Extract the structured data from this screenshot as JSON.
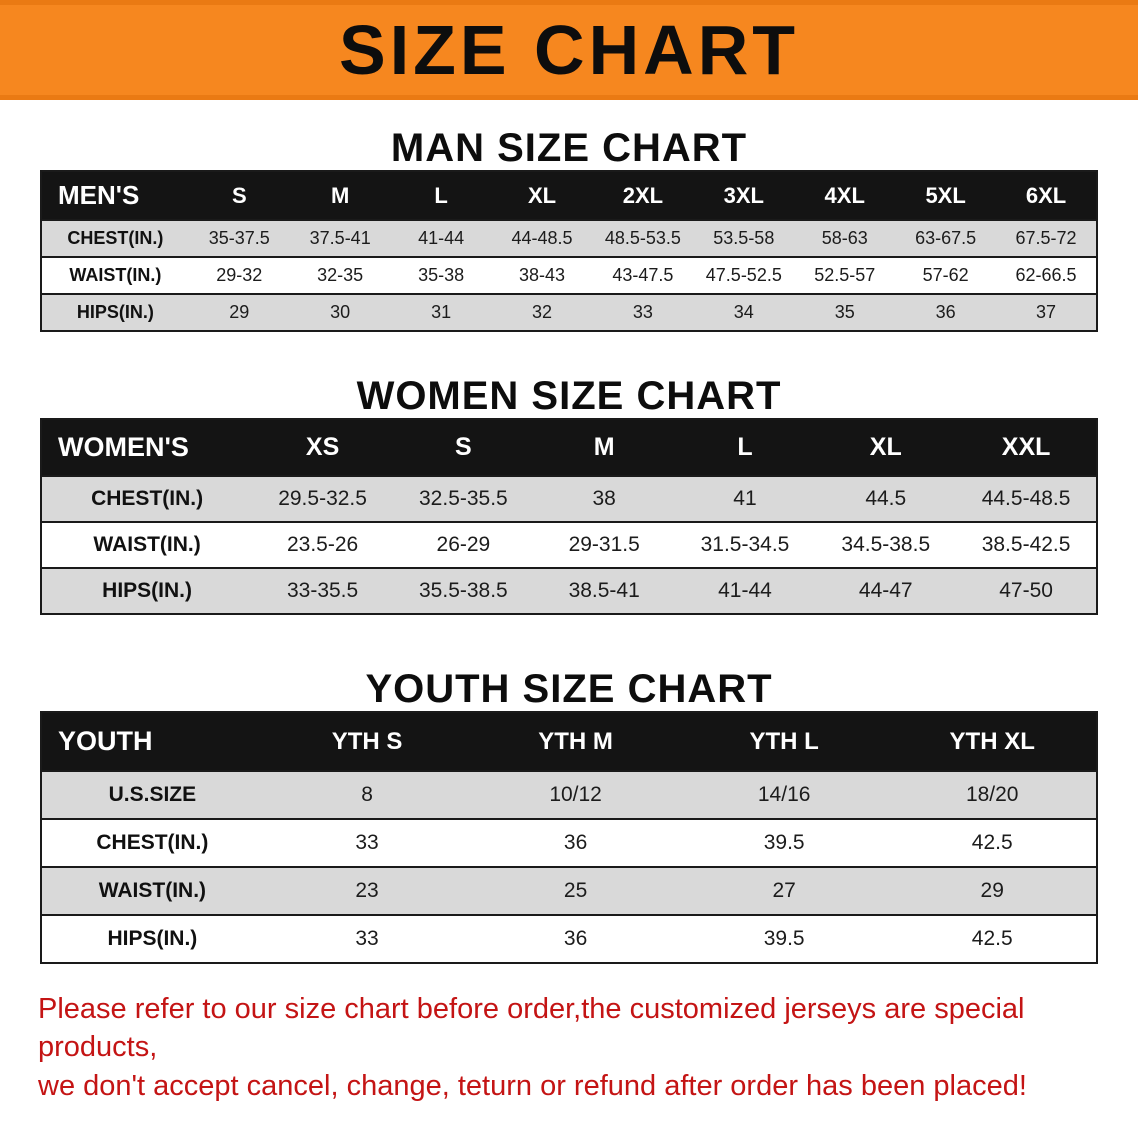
{
  "banner": {
    "title": "SIZE CHART",
    "bg_color": "#f6871f"
  },
  "sections": [
    {
      "heading": "MAN SIZE CHART",
      "table": {
        "header": [
          "MEN'S",
          "S",
          "M",
          "L",
          "XL",
          "2XL",
          "3XL",
          "4XL",
          "5XL",
          "6XL"
        ],
        "rows": [
          {
            "label": "CHEST(IN.)",
            "values": [
              "35-37.5",
              "37.5-41",
              "41-44",
              "44-48.5",
              "48.5-53.5",
              "53.5-58",
              "58-63",
              "63-67.5",
              "67.5-72"
            ]
          },
          {
            "label": "WAIST(IN.)",
            "values": [
              "29-32",
              "32-35",
              "35-38",
              "38-43",
              "43-47.5",
              "47.5-52.5",
              "52.5-57",
              "57-62",
              "62-66.5"
            ]
          },
          {
            "label": "HIPS(IN.)",
            "values": [
              "29",
              "30",
              "31",
              "32",
              "33",
              "34",
              "35",
              "36",
              "37"
            ]
          }
        ]
      }
    },
    {
      "heading": "WOMEN SIZE CHART",
      "table": {
        "header": [
          "WOMEN'S",
          "XS",
          "S",
          "M",
          "L",
          "XL",
          "XXL"
        ],
        "rows": [
          {
            "label": "CHEST(IN.)",
            "values": [
              "29.5-32.5",
              "32.5-35.5",
              "38",
              "41",
              "44.5",
              "44.5-48.5"
            ]
          },
          {
            "label": "WAIST(IN.)",
            "values": [
              "23.5-26",
              "26-29",
              "29-31.5",
              "31.5-34.5",
              "34.5-38.5",
              "38.5-42.5"
            ]
          },
          {
            "label": "HIPS(IN.)",
            "values": [
              "33-35.5",
              "35.5-38.5",
              "38.5-41",
              "41-44",
              "44-47",
              "47-50"
            ]
          }
        ]
      }
    },
    {
      "heading": "YOUTH SIZE CHART",
      "table": {
        "header": [
          "YOUTH",
          "YTH S",
          "YTH M",
          "YTH L",
          "YTH XL"
        ],
        "rows": [
          {
            "label": "U.S.SIZE",
            "values": [
              "8",
              "10/12",
              "14/16",
              "18/20"
            ]
          },
          {
            "label": "CHEST(IN.)",
            "values": [
              "33",
              "36",
              "39.5",
              "42.5"
            ]
          },
          {
            "label": "WAIST(IN.)",
            "values": [
              "23",
              "25",
              "27",
              "29"
            ]
          },
          {
            "label": "HIPS(IN.)",
            "values": [
              "33",
              "36",
              "39.5",
              "42.5"
            ]
          }
        ]
      }
    }
  ],
  "footer": {
    "line1": "Please refer to our size chart before order,the customized jerseys are special products,",
    "line2": "we don't accept cancel, change, teturn or refund after order has been placed!",
    "text_color": "#c41414"
  }
}
